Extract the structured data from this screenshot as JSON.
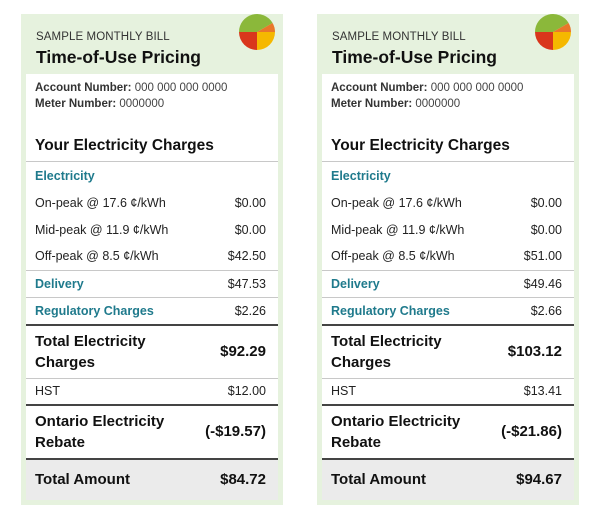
{
  "bills": [
    {
      "sample_label": "SAMPLE MONTHLY BILL",
      "title": "Time-of-Use Pricing",
      "account_label": "Account Number:",
      "account_value": "000 000 000 0000",
      "meter_label": "Meter Number:",
      "meter_value": "0000000",
      "section_title": "Your Electricity Charges",
      "electricity_label": "Electricity",
      "on_peak_label": "On-peak @ 17.6 ¢/kWh",
      "on_peak_value": "$0.00",
      "mid_peak_label": "Mid-peak @ 11.9 ¢/kWh",
      "mid_peak_value": "$0.00",
      "off_peak_label": "Off-peak @ 8.5 ¢/kWh",
      "off_peak_value": "$42.50",
      "delivery_label": "Delivery",
      "delivery_value": "$47.53",
      "regulatory_label": "Regulatory Charges",
      "regulatory_value": "$2.26",
      "total_elec_label_1": "Total Electricity",
      "total_elec_label_2": "Charges",
      "total_elec_value": "$92.29",
      "hst_label": "HST",
      "hst_value": "$12.00",
      "oer_label_1": "Ontario Electricity",
      "oer_label_2": "Rebate",
      "oer_value": "(-$19.57)",
      "total_label": "Total Amount",
      "total_value": "$84.72"
    },
    {
      "sample_label": "SAMPLE MONTHLY BILL",
      "title": "Time-of-Use Pricing",
      "account_label": "Account Number:",
      "account_value": "000 000 000 0000",
      "meter_label": "Meter Number:",
      "meter_value": "0000000",
      "section_title": "Your Electricity Charges",
      "electricity_label": "Electricity",
      "on_peak_label": "On-peak @ 17.6 ¢/kWh",
      "on_peak_value": "$0.00",
      "mid_peak_label": "Mid-peak @ 11.9 ¢/kWh",
      "mid_peak_value": "$0.00",
      "off_peak_label": "Off-peak @ 8.5 ¢/kWh",
      "off_peak_value": "$51.00",
      "delivery_label": "Delivery",
      "delivery_value": "$49.46",
      "regulatory_label": "Regulatory Charges",
      "regulatory_value": "$2.66",
      "total_elec_label_1": "Total Electricity",
      "total_elec_label_2": "Charges",
      "total_elec_value": "$103.12",
      "hst_label": "HST",
      "hst_value": "$13.41",
      "oer_label_1": "Ontario Electricity",
      "oer_label_2": "Rebate",
      "oer_value": "(-$21.86)",
      "total_label": "Total Amount",
      "total_value": "$94.67"
    }
  ],
  "colors": {
    "card_bg": "#e6f2de",
    "category_text": "#1f7a8c",
    "pie_green": "#8bb83a",
    "pie_red": "#d9361c",
    "pie_yellow": "#f5b800",
    "pie_orange": "#e9772a"
  },
  "logo_icon": "tou-pie-chart-icon"
}
